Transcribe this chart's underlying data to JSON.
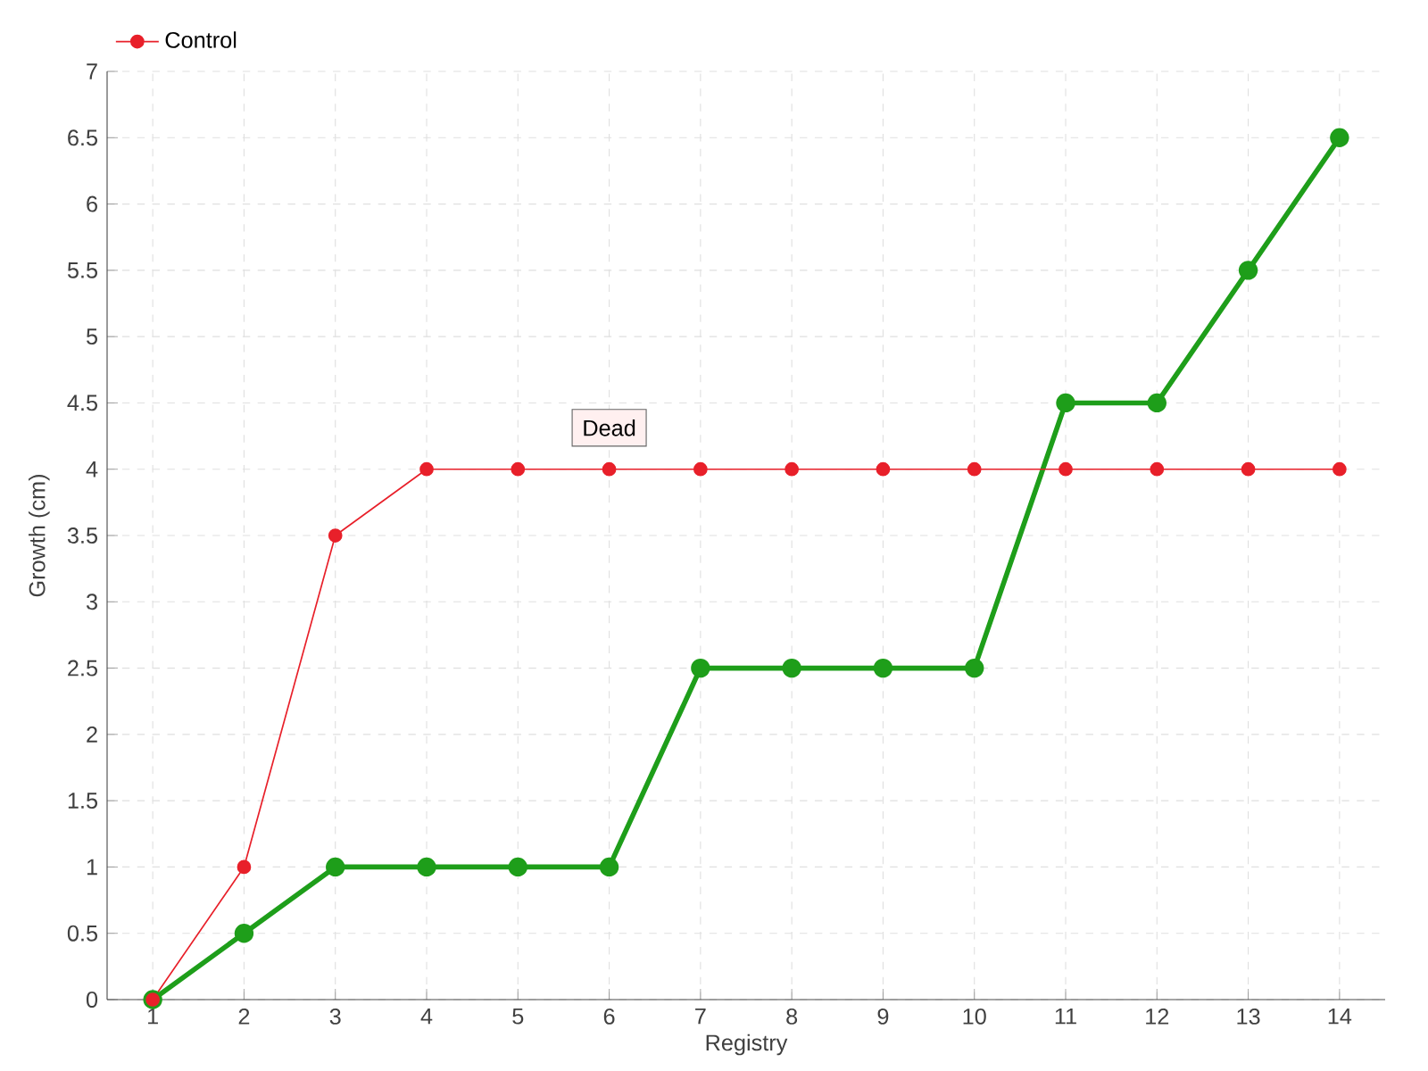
{
  "chart_data": {
    "type": "line",
    "xlabel": "Registry",
    "ylabel": "Growth (cm)",
    "categories": [
      "1",
      "2",
      "3",
      "4",
      "5",
      "6",
      "7",
      "8",
      "9",
      "10",
      "11",
      "12",
      "13",
      "14"
    ],
    "series": [
      {
        "color": "#1e9e1a",
        "values": [
          0,
          0.5,
          1,
          1,
          1,
          1,
          2.5,
          2.5,
          2.5,
          2.5,
          4.5,
          4.5,
          5.5,
          6.5
        ]
      },
      {
        "name": "Control",
        "color": "#e8202a",
        "values": [
          0,
          1,
          3.5,
          4,
          4,
          4,
          4,
          4,
          4,
          4,
          4,
          4,
          4,
          4
        ]
      }
    ],
    "ylim": [
      0,
      7
    ],
    "yticks": [
      0,
      0.5,
      1,
      1.5,
      2,
      2.5,
      3,
      3.5,
      4,
      4.5,
      5,
      5.5,
      6,
      6.5,
      7
    ],
    "grid": true,
    "legend": "top left",
    "marker": "circle",
    "line_style": "solid",
    "annotations": [
      {
        "text": "Dead",
        "x": "6",
        "y": 4
      }
    ]
  }
}
